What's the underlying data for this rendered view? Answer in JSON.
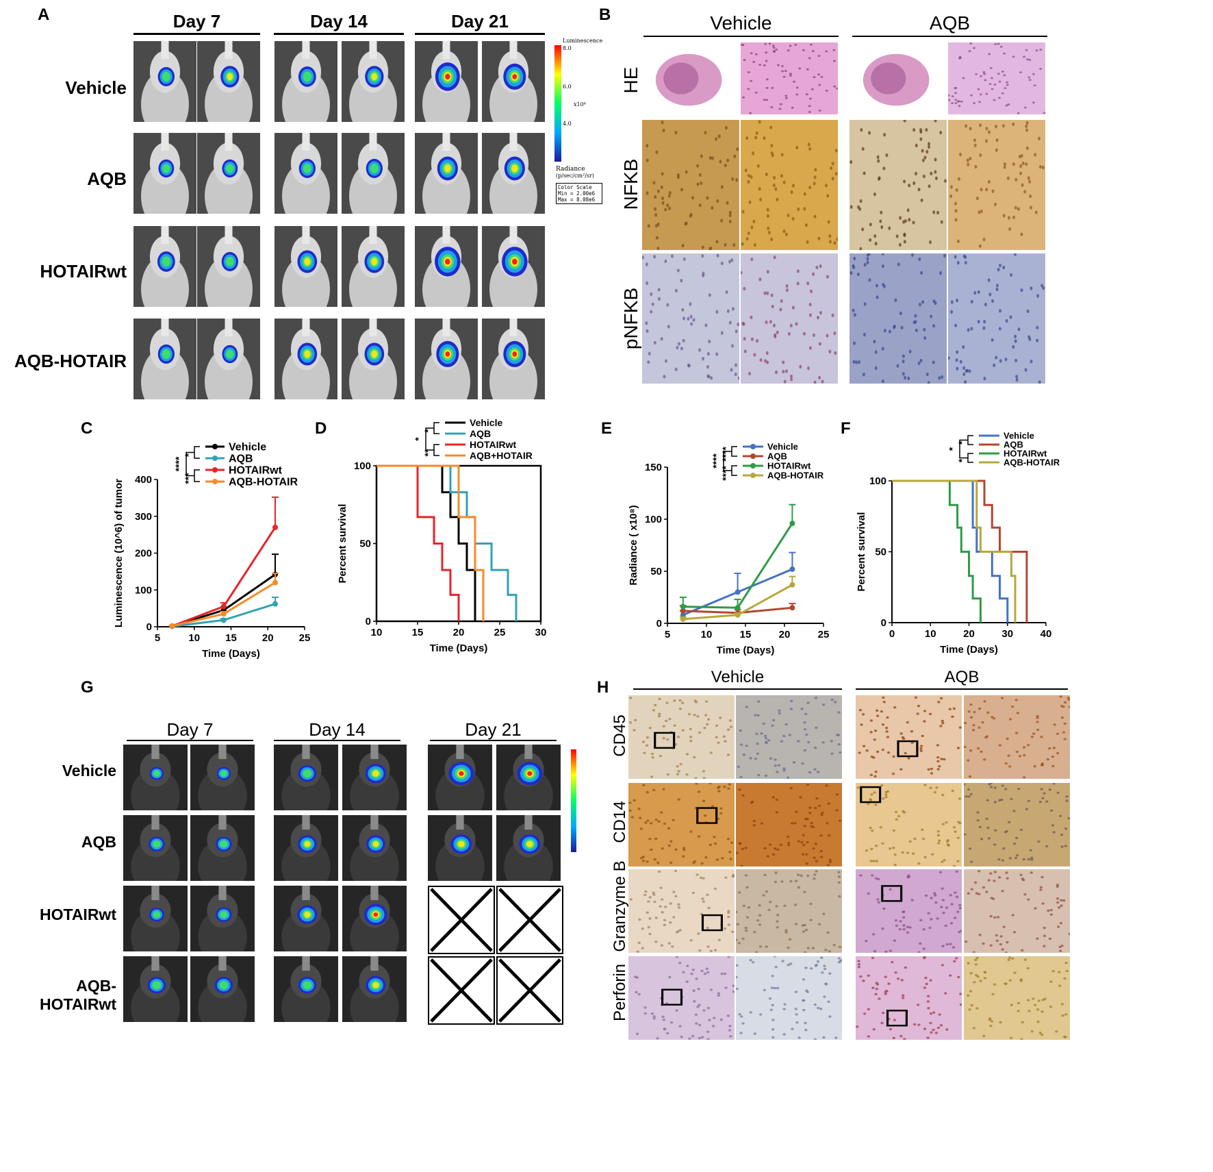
{
  "panels": {
    "A": {
      "label": "A",
      "days": [
        "Day 7",
        "Day 14",
        "Day 21"
      ],
      "rows": [
        "Vehicle",
        "AQB",
        "HOTAIRwt",
        "AQB-HOTAIR"
      ],
      "scalebar": {
        "title": "Luminescence",
        "ticks": [
          "8.0",
          "6.0",
          "4.0"
        ],
        "unit": "x10⁶",
        "radiance": "Radiance",
        "radiance_unit": "(p/sec/cm²/sr)",
        "color_scale": "Color Scale",
        "min": "Min = 2.00e6",
        "max": "Max = 8.08e6"
      }
    },
    "B": {
      "label": "B",
      "groups": [
        "Vehicle",
        "AQB"
      ],
      "rows": [
        "HE",
        "NFKB",
        "pNFKB"
      ]
    },
    "G": {
      "label": "G",
      "days": [
        "Day 7",
        "Day 14",
        "Day 21"
      ],
      "rows": [
        "Vehicle",
        "AQB",
        "HOTAIRwt",
        "AQB-HOTAIRwt"
      ]
    },
    "H": {
      "label": "H",
      "groups": [
        "Vehicle",
        "AQB"
      ],
      "rows": [
        "CD45",
        "CD14",
        "Granzyme B",
        "Perforin"
      ]
    }
  },
  "chart_data": [
    {
      "panel": "C",
      "type": "line",
      "xlabel": "Time (Days)",
      "ylabel": "Luminescence (10^6) of tumor",
      "xlim": [
        5,
        25
      ],
      "ylim": [
        0,
        400
      ],
      "xticks": [
        "5",
        "10",
        "15",
        "20",
        "25"
      ],
      "yticks": [
        "0",
        "100",
        "200",
        "300",
        "400"
      ],
      "x": [
        7,
        14,
        21
      ],
      "series": [
        {
          "name": "Vehicle",
          "color": "#000000",
          "values": [
            2,
            45,
            142
          ],
          "err": [
            1,
            8,
            55
          ]
        },
        {
          "name": "AQB",
          "color": "#2fa3b4",
          "values": [
            1,
            18,
            62
          ],
          "err": [
            1,
            4,
            18
          ]
        },
        {
          "name": "HOTAIRwt",
          "color": "#e8232a",
          "values": [
            2,
            55,
            270
          ],
          "err": [
            1,
            10,
            82
          ]
        },
        {
          "name": "AQB-HOTAIR",
          "color": "#f58a28",
          "values": [
            2,
            35,
            120
          ],
          "err": [
            1,
            6,
            25
          ]
        }
      ],
      "significance": [
        "****",
        "*",
        "***"
      ]
    },
    {
      "panel": "D",
      "type": "line",
      "xlabel": "Time (Days)",
      "ylabel": "Percent survival",
      "xlim": [
        10,
        30
      ],
      "ylim": [
        0,
        100
      ],
      "xticks": [
        "10",
        "15",
        "20",
        "25",
        "30"
      ],
      "yticks": [
        "0",
        "50",
        "100"
      ],
      "series": [
        {
          "name": "Vehicle",
          "color": "#000000",
          "steps": [
            [
              10,
              100
            ],
            [
              18,
              100
            ],
            [
              18,
              83
            ],
            [
              19,
              83
            ],
            [
              19,
              67
            ],
            [
              20,
              67
            ],
            [
              20,
              50
            ],
            [
              21,
              50
            ],
            [
              21,
              33
            ],
            [
              22,
              33
            ],
            [
              22,
              0
            ]
          ]
        },
        {
          "name": "AQB",
          "color": "#2fa3b4",
          "steps": [
            [
              10,
              100
            ],
            [
              19,
              100
            ],
            [
              19,
              83
            ],
            [
              21,
              83
            ],
            [
              21,
              67
            ],
            [
              22,
              67
            ],
            [
              22,
              50
            ],
            [
              24,
              50
            ],
            [
              24,
              33
            ],
            [
              26,
              33
            ],
            [
              26,
              17
            ],
            [
              27,
              17
            ],
            [
              27,
              0
            ]
          ]
        },
        {
          "name": "HOTAIRwt",
          "color": "#e8232a",
          "steps": [
            [
              10,
              100
            ],
            [
              15,
              100
            ],
            [
              15,
              67
            ],
            [
              17,
              67
            ],
            [
              17,
              50
            ],
            [
              18,
              50
            ],
            [
              18,
              33
            ],
            [
              19,
              33
            ],
            [
              19,
              17
            ],
            [
              20,
              17
            ],
            [
              20,
              0
            ]
          ]
        },
        {
          "name": "AQB+HOTAIR",
          "color": "#f58a28",
          "steps": [
            [
              10,
              100
            ],
            [
              20,
              100
            ],
            [
              20,
              67
            ],
            [
              22,
              67
            ],
            [
              22,
              33
            ],
            [
              23,
              33
            ],
            [
              23,
              0
            ]
          ]
        }
      ],
      "significance": [
        "*",
        "*",
        "**"
      ]
    },
    {
      "panel": "E",
      "type": "line",
      "xlabel": "Time (Days)",
      "ylabel": "Radiance ( x10⁸)",
      "xlim": [
        5,
        25
      ],
      "ylim": [
        0,
        150
      ],
      "xticks": [
        "5",
        "10",
        "15",
        "20",
        "25"
      ],
      "yticks": [
        "0",
        "50",
        "100",
        "150"
      ],
      "x": [
        7,
        14,
        21
      ],
      "series": [
        {
          "name": "Vehicle",
          "color": "#4472c4",
          "values": [
            8,
            30,
            52
          ],
          "err": [
            4,
            18,
            16
          ]
        },
        {
          "name": "AQB",
          "color": "#b5462e",
          "values": [
            12,
            10,
            15
          ],
          "err": [
            5,
            3,
            4
          ]
        },
        {
          "name": "HOTAIRwt",
          "color": "#2e9b45",
          "values": [
            16,
            15,
            96
          ],
          "err": [
            9,
            8,
            18
          ]
        },
        {
          "name": "AQB-HOTAIR",
          "color": "#b5a83a",
          "values": [
            4,
            8,
            37
          ],
          "err": [
            2,
            2,
            8
          ]
        }
      ],
      "significance": [
        "****",
        "****",
        "****"
      ]
    },
    {
      "panel": "F",
      "type": "line",
      "xlabel": "Time (Days)",
      "ylabel": "Percent survival",
      "xlim": [
        0,
        40
      ],
      "ylim": [
        0,
        100
      ],
      "xticks": [
        "0",
        "10",
        "20",
        "30",
        "40"
      ],
      "yticks": [
        "0",
        "50",
        "100"
      ],
      "series": [
        {
          "name": "Vehicle",
          "color": "#4472c4",
          "steps": [
            [
              0,
              100
            ],
            [
              21,
              100
            ],
            [
              21,
              67
            ],
            [
              22,
              67
            ],
            [
              22,
              50
            ],
            [
              26,
              50
            ],
            [
              26,
              33
            ],
            [
              28,
              33
            ],
            [
              28,
              17
            ],
            [
              30,
              17
            ],
            [
              30,
              0
            ]
          ]
        },
        {
          "name": "AQB",
          "color": "#b5462e",
          "steps": [
            [
              0,
              100
            ],
            [
              24,
              100
            ],
            [
              24,
              83
            ],
            [
              26,
              83
            ],
            [
              26,
              67
            ],
            [
              28,
              67
            ],
            [
              28,
              50
            ],
            [
              35,
              50
            ],
            [
              35,
              0
            ]
          ]
        },
        {
          "name": "HOTAIRwt",
          "color": "#2e9b45",
          "steps": [
            [
              0,
              100
            ],
            [
              15,
              100
            ],
            [
              15,
              83
            ],
            [
              17,
              83
            ],
            [
              17,
              67
            ],
            [
              18,
              67
            ],
            [
              18,
              50
            ],
            [
              20,
              50
            ],
            [
              20,
              33
            ],
            [
              21,
              33
            ],
            [
              21,
              17
            ],
            [
              23,
              17
            ],
            [
              23,
              0
            ]
          ]
        },
        {
          "name": "AQB-HOTAIR",
          "color": "#b5a83a",
          "steps": [
            [
              0,
              100
            ],
            [
              22,
              100
            ],
            [
              22,
              67
            ],
            [
              23,
              67
            ],
            [
              23,
              50
            ],
            [
              31,
              50
            ],
            [
              31,
              33
            ],
            [
              32,
              33
            ],
            [
              32,
              0
            ]
          ]
        }
      ],
      "significance": [
        "*",
        "*",
        "*"
      ]
    }
  ]
}
